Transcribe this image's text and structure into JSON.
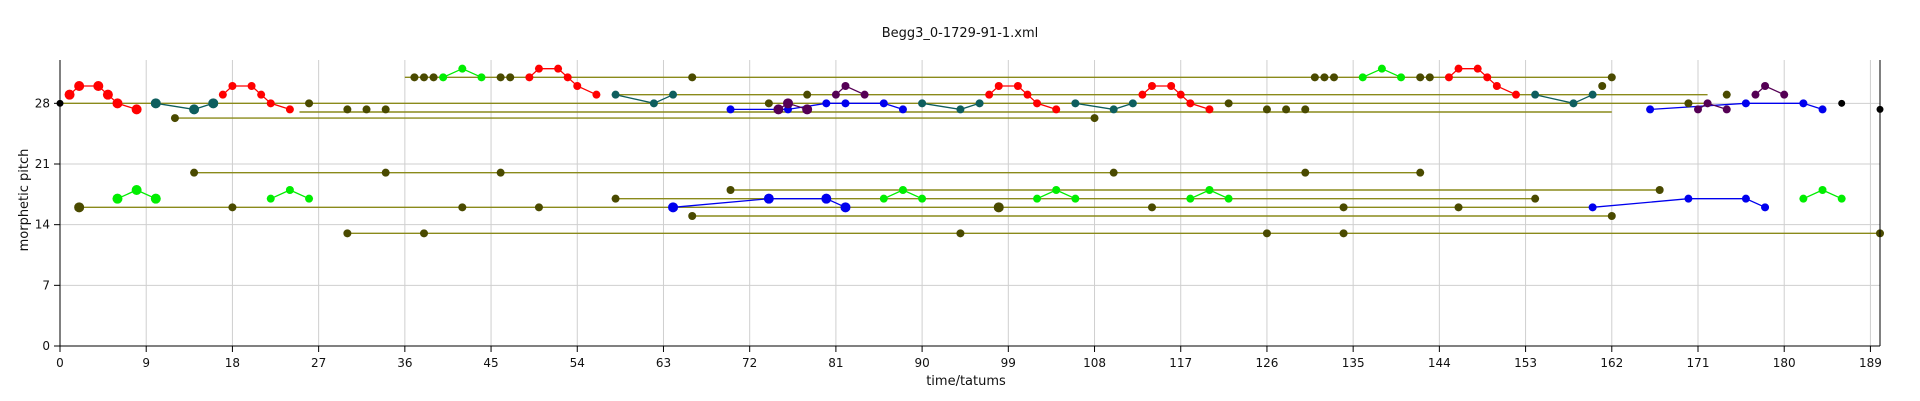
{
  "chart_data": {
    "type": "scatter",
    "title": "Begg3_0-1729-91-1.xml",
    "xlabel": "time/tatums",
    "ylabel": "morphetic pitch",
    "xlim": [
      0,
      190
    ],
    "ylim": [
      0,
      33
    ],
    "xticks": [
      0,
      9,
      18,
      27,
      36,
      45,
      54,
      63,
      72,
      81,
      90,
      99,
      108,
      117,
      126,
      135,
      144,
      153,
      162,
      171,
      180,
      189
    ],
    "yticks": [
      0,
      7,
      14,
      21,
      28
    ],
    "grid": true,
    "colors": {
      "olive": "#4a4a00",
      "olive_line": "#8a8a1a",
      "red": "#ff0000",
      "teal": "#0e5e5e",
      "green": "#00ee00",
      "blue": "#0000ee",
      "purple": "#550055",
      "black": "#000000"
    },
    "spans": [
      {
        "x1": 36,
        "x2": 162,
        "y": 31,
        "color": "olive_line"
      },
      {
        "x1": 0,
        "x2": 172,
        "y": 28,
        "color": "olive_line"
      },
      {
        "x1": 25,
        "x2": 162,
        "y": 27,
        "color": "olive_line"
      },
      {
        "x1": 12,
        "x2": 108,
        "y": 26.3,
        "color": "olive_line"
      },
      {
        "x1": 58,
        "x2": 172,
        "y": 29,
        "color": "olive_line"
      },
      {
        "x1": 14,
        "x2": 142,
        "y": 20,
        "color": "olive_line"
      },
      {
        "x1": 70,
        "x2": 167,
        "y": 18,
        "color": "olive_line"
      },
      {
        "x1": 58,
        "x2": 154,
        "y": 17,
        "color": "olive_line"
      },
      {
        "x1": 2,
        "x2": 160,
        "y": 16,
        "color": "olive_line"
      },
      {
        "x1": 66,
        "x2": 162,
        "y": 15,
        "color": "olive_line"
      },
      {
        "x1": 30,
        "x2": 190,
        "y": 13,
        "color": "olive_line"
      }
    ],
    "series": [
      {
        "color": "red",
        "r": 5,
        "points": [
          [
            1,
            29
          ],
          [
            2,
            30
          ],
          [
            4,
            30
          ],
          [
            5,
            29
          ],
          [
            6,
            28
          ],
          [
            8,
            27.3
          ]
        ]
      },
      {
        "color": "red",
        "r": 4,
        "points": [
          [
            17,
            29
          ],
          [
            18,
            30
          ],
          [
            20,
            30
          ],
          [
            21,
            29
          ],
          [
            22,
            28
          ],
          [
            24,
            27.3
          ]
        ]
      },
      {
        "color": "red",
        "r": 4,
        "points": [
          [
            49,
            31
          ],
          [
            50,
            32
          ],
          [
            52,
            32
          ],
          [
            53,
            31
          ],
          [
            54,
            30
          ],
          [
            56,
            29
          ]
        ]
      },
      {
        "color": "red",
        "r": 4,
        "points": [
          [
            97,
            29
          ],
          [
            98,
            30
          ],
          [
            100,
            30
          ],
          [
            101,
            29
          ],
          [
            102,
            28
          ],
          [
            104,
            27.3
          ]
        ]
      },
      {
        "color": "red",
        "r": 4,
        "points": [
          [
            113,
            29
          ],
          [
            114,
            30
          ],
          [
            116,
            30
          ],
          [
            117,
            29
          ],
          [
            118,
            28
          ],
          [
            120,
            27.3
          ]
        ]
      },
      {
        "color": "red",
        "r": 4,
        "points": [
          [
            145,
            31
          ],
          [
            146,
            32
          ],
          [
            148,
            32
          ],
          [
            149,
            31
          ],
          [
            150,
            30
          ],
          [
            152,
            29
          ]
        ]
      },
      {
        "color": "teal",
        "r": 5,
        "points": [
          [
            10,
            28
          ],
          [
            14,
            27.3
          ],
          [
            16,
            28
          ]
        ]
      },
      {
        "color": "teal",
        "r": 4,
        "points": [
          [
            58,
            29
          ],
          [
            62,
            28
          ],
          [
            64,
            29
          ]
        ]
      },
      {
        "color": "teal",
        "r": 4,
        "points": [
          [
            90,
            28
          ],
          [
            94,
            27.3
          ],
          [
            96,
            28
          ]
        ]
      },
      {
        "color": "teal",
        "r": 4,
        "points": [
          [
            106,
            28
          ],
          [
            110,
            27.3
          ],
          [
            112,
            28
          ]
        ]
      },
      {
        "color": "teal",
        "r": 4,
        "points": [
          [
            154,
            29
          ],
          [
            158,
            28
          ],
          [
            160,
            29
          ]
        ]
      },
      {
        "color": "green",
        "r": 5,
        "points": [
          [
            6,
            17
          ],
          [
            8,
            18
          ],
          [
            10,
            17
          ]
        ]
      },
      {
        "color": "green",
        "r": 4,
        "points": [
          [
            22,
            17
          ],
          [
            24,
            18
          ],
          [
            26,
            17
          ]
        ]
      },
      {
        "color": "green",
        "r": 4,
        "points": [
          [
            40,
            31
          ],
          [
            42,
            32
          ],
          [
            44,
            31
          ]
        ]
      },
      {
        "color": "green",
        "r": 4,
        "points": [
          [
            86,
            17
          ],
          [
            88,
            18
          ],
          [
            90,
            17
          ]
        ]
      },
      {
        "color": "green",
        "r": 4,
        "points": [
          [
            102,
            17
          ],
          [
            104,
            18
          ],
          [
            106,
            17
          ]
        ]
      },
      {
        "color": "green",
        "r": 4,
        "points": [
          [
            118,
            17
          ],
          [
            120,
            18
          ],
          [
            122,
            17
          ]
        ]
      },
      {
        "color": "green",
        "r": 4,
        "points": [
          [
            136,
            31
          ],
          [
            138,
            32
          ],
          [
            140,
            31
          ]
        ]
      },
      {
        "color": "green",
        "r": 4,
        "points": [
          [
            182,
            17
          ],
          [
            184,
            18
          ],
          [
            186,
            17
          ]
        ]
      },
      {
        "color": "blue",
        "r": 4,
        "points": [
          [
            70,
            27.3
          ],
          [
            76,
            27.3
          ],
          [
            80,
            28
          ],
          [
            82,
            28
          ],
          [
            86,
            28
          ],
          [
            88,
            27.3
          ]
        ]
      },
      {
        "color": "blue",
        "r": 5,
        "points": [
          [
            64,
            16
          ],
          [
            74,
            17
          ],
          [
            80,
            17
          ],
          [
            82,
            16
          ]
        ]
      },
      {
        "color": "blue",
        "r": 4,
        "points": [
          [
            160,
            16
          ],
          [
            170,
            17
          ],
          [
            176,
            17
          ],
          [
            178,
            16
          ]
        ]
      },
      {
        "color": "blue",
        "r": 4,
        "points": [
          [
            166,
            27.3
          ],
          [
            176,
            28
          ],
          [
            182,
            28
          ],
          [
            184,
            27.3
          ]
        ]
      },
      {
        "color": "purple",
        "r": 5,
        "points": [
          [
            75,
            27.3
          ],
          [
            76,
            28
          ],
          [
            78,
            27.3
          ]
        ]
      },
      {
        "color": "purple",
        "r": 4,
        "points": [
          [
            81,
            29
          ],
          [
            82,
            30
          ],
          [
            84,
            29
          ]
        ]
      },
      {
        "color": "purple",
        "r": 4,
        "points": [
          [
            171,
            27.3
          ],
          [
            172,
            28
          ],
          [
            174,
            27.3
          ]
        ]
      },
      {
        "color": "purple",
        "r": 4,
        "points": [
          [
            177,
            29
          ],
          [
            178,
            30
          ],
          [
            180,
            29
          ]
        ]
      }
    ],
    "dots": [
      {
        "color": "olive",
        "r": 4,
        "points": [
          [
            37,
            31
          ],
          [
            38,
            31
          ],
          [
            39,
            31
          ],
          [
            46,
            31
          ],
          [
            47,
            31
          ],
          [
            66,
            31
          ],
          [
            131,
            31
          ],
          [
            132,
            31
          ],
          [
            133,
            31
          ],
          [
            142,
            31
          ],
          [
            143,
            31
          ],
          [
            162,
            31
          ],
          [
            26,
            28
          ],
          [
            74,
            28
          ],
          [
            122,
            28
          ],
          [
            170,
            28
          ],
          [
            30,
            27.3
          ],
          [
            32,
            27.3
          ],
          [
            34,
            27.3
          ],
          [
            126,
            27.3
          ],
          [
            128,
            27.3
          ],
          [
            130,
            27.3
          ],
          [
            12,
            26.3
          ],
          [
            108,
            26.3
          ],
          [
            78,
            29
          ],
          [
            174,
            29
          ],
          [
            161,
            30
          ],
          [
            14,
            20
          ],
          [
            34,
            20
          ],
          [
            46,
            20
          ],
          [
            110,
            20
          ],
          [
            130,
            20
          ],
          [
            142,
            20
          ],
          [
            70,
            18
          ],
          [
            167,
            18
          ],
          [
            58,
            17
          ],
          [
            154,
            17
          ],
          [
            18,
            16
          ],
          [
            42,
            16
          ],
          [
            50,
            16
          ],
          [
            114,
            16
          ],
          [
            134,
            16
          ],
          [
            146,
            16
          ],
          [
            66,
            15
          ],
          [
            162,
            15
          ],
          [
            30,
            13
          ],
          [
            38,
            13
          ],
          [
            94,
            13
          ],
          [
            126,
            13
          ],
          [
            134,
            13
          ],
          [
            190,
            13
          ]
        ]
      },
      {
        "color": "olive",
        "r": 5,
        "points": [
          [
            2,
            16
          ],
          [
            98,
            16
          ]
        ]
      },
      {
        "color": "black",
        "r": 3.5,
        "points": [
          [
            0,
            28
          ],
          [
            186,
            28
          ],
          [
            190,
            27.3
          ]
        ]
      }
    ]
  }
}
